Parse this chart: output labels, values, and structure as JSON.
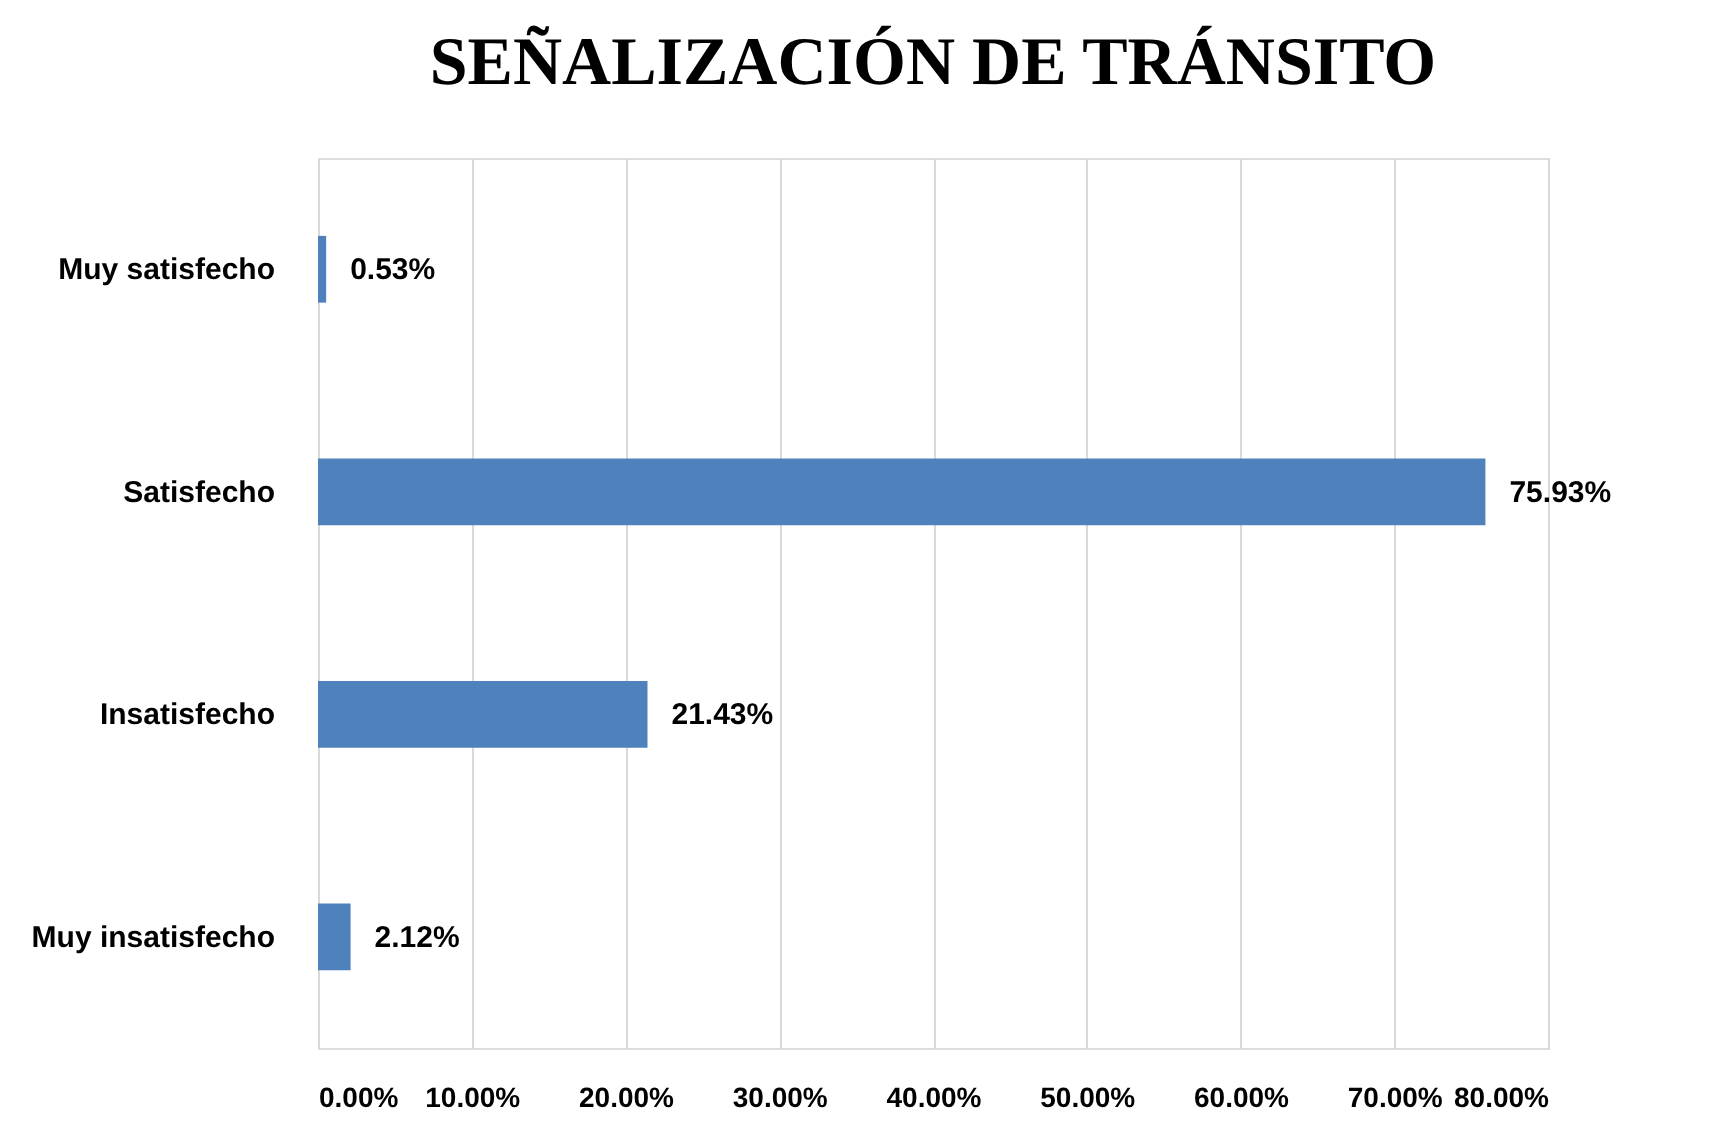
{
  "chart_data": {
    "type": "bar",
    "orientation": "horizontal",
    "title": "SEÑALIZACIÓN DE TRÁNSITO",
    "categories": [
      "Muy satisfecho",
      "Satisfecho",
      "Insatisfecho",
      "Muy insatisfecho"
    ],
    "values": [
      0.53,
      75.93,
      21.43,
      2.12
    ],
    "color": "#4f81bd",
    "value_labels": [
      "0.53%",
      "75.93%",
      "21.43%",
      "2.12%"
    ],
    "xlim": [
      0,
      80
    ],
    "xticks": [
      {
        "value": 0,
        "label": "0.00%"
      },
      {
        "value": 10,
        "label": "10.00%"
      },
      {
        "value": 20,
        "label": "20.00%"
      },
      {
        "value": 30,
        "label": "30.00%"
      },
      {
        "value": 40,
        "label": "40.00%"
      },
      {
        "value": 50,
        "label": "50.00%"
      },
      {
        "value": 60,
        "label": "60.00%"
      },
      {
        "value": 70,
        "label": "70.00%"
      },
      {
        "value": 80,
        "label": "80.00%"
      }
    ],
    "grid": "x"
  }
}
